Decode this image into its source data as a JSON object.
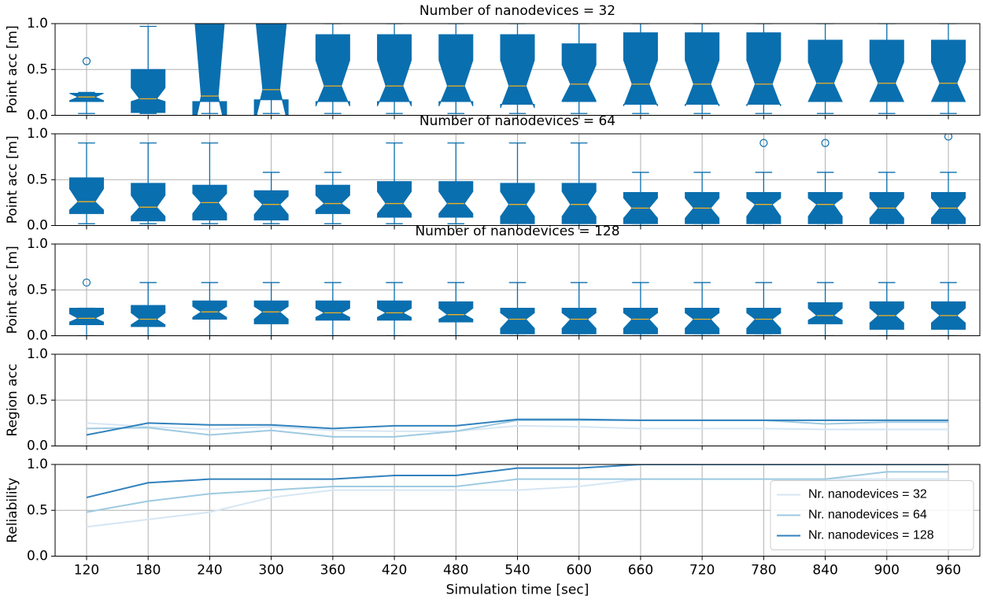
{
  "chart_data": [
    {
      "type": "box",
      "title": "Number of nanodevices = 32",
      "ylabel": "Point acc [m]",
      "color": "#0a6faf",
      "median_color": "#f0b020",
      "ylim": [
        0,
        1
      ],
      "yticks": [
        {
          "value": 0,
          "label": "0.0"
        },
        {
          "value": 0.5,
          "label": "0.5"
        },
        {
          "value": 1,
          "label": "1.0"
        }
      ],
      "grid": true,
      "boxes": [
        {
          "whislo": 0.02,
          "q1": 0.15,
          "cilo": 0.16,
          "med": 0.2,
          "cihi": 0.24,
          "q3": 0.24,
          "whishi": 0.25,
          "fliers": [
            0.59
          ]
        },
        {
          "whislo": 0.02,
          "q1": 0.03,
          "cilo": 0.15,
          "med": 0.18,
          "cihi": 0.3,
          "q3": 0.5,
          "whishi": 0.97
        },
        {
          "whislo": 0.02,
          "q1": 0.15,
          "cilo": -0.2,
          "med": 0.21,
          "cihi": 1.3,
          "q3": 1.0,
          "whishi": 1.0
        },
        {
          "whislo": 0.02,
          "q1": 0.17,
          "cilo": -0.1,
          "med": 0.28,
          "cihi": 1.2,
          "q3": 1.0,
          "whishi": 1.0
        },
        {
          "whislo": 0.02,
          "q1": 0.15,
          "cilo": 0.1,
          "med": 0.32,
          "cihi": 0.6,
          "q3": 0.88,
          "whishi": 1.0
        },
        {
          "whislo": 0.02,
          "q1": 0.15,
          "cilo": 0.1,
          "med": 0.32,
          "cihi": 0.6,
          "q3": 0.88,
          "whishi": 1.0
        },
        {
          "whislo": 0.02,
          "q1": 0.15,
          "cilo": 0.1,
          "med": 0.32,
          "cihi": 0.6,
          "q3": 0.88,
          "whishi": 1.0
        },
        {
          "whislo": 0.02,
          "q1": 0.12,
          "cilo": 0.08,
          "med": 0.32,
          "cihi": 0.6,
          "q3": 0.88,
          "whishi": 1.0
        },
        {
          "whislo": 0.02,
          "q1": 0.15,
          "cilo": 0.16,
          "med": 0.34,
          "cihi": 0.55,
          "q3": 0.78,
          "whishi": 1.0
        },
        {
          "whislo": 0.02,
          "q1": 0.12,
          "cilo": 0.1,
          "med": 0.34,
          "cihi": 0.6,
          "q3": 0.9,
          "whishi": 1.0
        },
        {
          "whislo": 0.02,
          "q1": 0.12,
          "cilo": 0.1,
          "med": 0.34,
          "cihi": 0.6,
          "q3": 0.9,
          "whishi": 1.0
        },
        {
          "whislo": 0.02,
          "q1": 0.12,
          "cilo": 0.1,
          "med": 0.34,
          "cihi": 0.6,
          "q3": 0.9,
          "whishi": 1.0
        },
        {
          "whislo": 0.02,
          "q1": 0.15,
          "cilo": 0.15,
          "med": 0.35,
          "cihi": 0.58,
          "q3": 0.82,
          "whishi": 1.0
        },
        {
          "whislo": 0.02,
          "q1": 0.15,
          "cilo": 0.15,
          "med": 0.35,
          "cihi": 0.58,
          "q3": 0.82,
          "whishi": 1.0
        },
        {
          "whislo": 0.02,
          "q1": 0.15,
          "cilo": 0.15,
          "med": 0.35,
          "cihi": 0.58,
          "q3": 0.82,
          "whishi": 1.0
        }
      ]
    },
    {
      "type": "box",
      "title": "Number of nanodevices = 64",
      "ylabel": "Point acc [m]",
      "color": "#0a6faf",
      "median_color": "#f0b020",
      "ylim": [
        0,
        1
      ],
      "yticks": [
        {
          "value": 0,
          "label": "0.0"
        },
        {
          "value": 0.5,
          "label": "0.5"
        },
        {
          "value": 1,
          "label": "1.0"
        }
      ],
      "grid": true,
      "boxes": [
        {
          "whislo": 0.02,
          "q1": 0.13,
          "cilo": 0.17,
          "med": 0.26,
          "cihi": 0.4,
          "q3": 0.52,
          "whishi": 0.9
        },
        {
          "whislo": 0.02,
          "q1": 0.05,
          "cilo": 0.1,
          "med": 0.2,
          "cihi": 0.33,
          "q3": 0.46,
          "whishi": 0.9
        },
        {
          "whislo": 0.02,
          "q1": 0.06,
          "cilo": 0.13,
          "med": 0.25,
          "cihi": 0.35,
          "q3": 0.44,
          "whishi": 0.9
        },
        {
          "whislo": 0.02,
          "q1": 0.06,
          "cilo": 0.12,
          "med": 0.23,
          "cihi": 0.32,
          "q3": 0.38,
          "whishi": 0.58
        },
        {
          "whislo": 0.02,
          "q1": 0.13,
          "cilo": 0.17,
          "med": 0.24,
          "cihi": 0.33,
          "q3": 0.44,
          "whishi": 0.58
        },
        {
          "whislo": 0.02,
          "q1": 0.09,
          "cilo": 0.13,
          "med": 0.24,
          "cihi": 0.37,
          "q3": 0.48,
          "whishi": 0.9
        },
        {
          "whislo": 0.02,
          "q1": 0.09,
          "cilo": 0.13,
          "med": 0.24,
          "cihi": 0.37,
          "q3": 0.48,
          "whishi": 0.9
        },
        {
          "whislo": 0.0,
          "q1": 0.02,
          "cilo": 0.1,
          "med": 0.23,
          "cihi": 0.37,
          "q3": 0.46,
          "whishi": 0.9
        },
        {
          "whislo": 0.0,
          "q1": 0.02,
          "cilo": 0.1,
          "med": 0.23,
          "cihi": 0.37,
          "q3": 0.46,
          "whishi": 0.9
        },
        {
          "whislo": 0.0,
          "q1": 0.02,
          "cilo": 0.08,
          "med": 0.19,
          "cihi": 0.3,
          "q3": 0.36,
          "whishi": 0.58
        },
        {
          "whislo": 0.0,
          "q1": 0.02,
          "cilo": 0.08,
          "med": 0.19,
          "cihi": 0.3,
          "q3": 0.36,
          "whishi": 0.58
        },
        {
          "whislo": 0.0,
          "q1": 0.02,
          "cilo": 0.1,
          "med": 0.23,
          "cihi": 0.3,
          "q3": 0.36,
          "whishi": 0.58,
          "fliers": [
            0.9
          ]
        },
        {
          "whislo": 0.0,
          "q1": 0.02,
          "cilo": 0.1,
          "med": 0.23,
          "cihi": 0.3,
          "q3": 0.36,
          "whishi": 0.58,
          "fliers": [
            0.9
          ]
        },
        {
          "whislo": 0.0,
          "q1": 0.02,
          "cilo": 0.08,
          "med": 0.19,
          "cihi": 0.3,
          "q3": 0.36,
          "whishi": 0.58
        },
        {
          "whislo": 0.0,
          "q1": 0.02,
          "cilo": 0.08,
          "med": 0.19,
          "cihi": 0.3,
          "q3": 0.36,
          "whishi": 0.58,
          "fliers": [
            0.97
          ]
        }
      ]
    },
    {
      "type": "box",
      "title": "Number of nanodevices = 128",
      "ylabel": "Point acc [m]",
      "color": "#0a6faf",
      "median_color": "#f0b020",
      "ylim": [
        0,
        1
      ],
      "yticks": [
        {
          "value": 0,
          "label": "0.0"
        },
        {
          "value": 0.5,
          "label": "0.5"
        },
        {
          "value": 1,
          "label": "1.0"
        }
      ],
      "grid": true,
      "boxes": [
        {
          "whislo": 0.0,
          "q1": 0.12,
          "cilo": 0.15,
          "med": 0.19,
          "cihi": 0.24,
          "q3": 0.3,
          "whishi": 0.3,
          "fliers": [
            0.58
          ]
        },
        {
          "whislo": 0.0,
          "q1": 0.1,
          "cilo": 0.12,
          "med": 0.18,
          "cihi": 0.25,
          "q3": 0.33,
          "whishi": 0.58
        },
        {
          "whislo": 0.0,
          "q1": 0.18,
          "cilo": 0.2,
          "med": 0.26,
          "cihi": 0.32,
          "q3": 0.38,
          "whishi": 0.58
        },
        {
          "whislo": 0.0,
          "q1": 0.13,
          "cilo": 0.18,
          "med": 0.26,
          "cihi": 0.32,
          "q3": 0.38,
          "whishi": 0.58
        },
        {
          "whislo": 0.0,
          "q1": 0.17,
          "cilo": 0.2,
          "med": 0.25,
          "cihi": 0.3,
          "q3": 0.38,
          "whishi": 0.58
        },
        {
          "whislo": 0.0,
          "q1": 0.17,
          "cilo": 0.2,
          "med": 0.25,
          "cihi": 0.3,
          "q3": 0.38,
          "whishi": 0.58
        },
        {
          "whislo": 0.0,
          "q1": 0.15,
          "cilo": 0.18,
          "med": 0.23,
          "cihi": 0.3,
          "q3": 0.37,
          "whishi": 0.58
        },
        {
          "whislo": 0.0,
          "q1": 0.02,
          "cilo": 0.08,
          "med": 0.18,
          "cihi": 0.25,
          "q3": 0.3,
          "whishi": 0.58
        },
        {
          "whislo": 0.0,
          "q1": 0.02,
          "cilo": 0.08,
          "med": 0.18,
          "cihi": 0.25,
          "q3": 0.3,
          "whishi": 0.58
        },
        {
          "whislo": 0.0,
          "q1": 0.02,
          "cilo": 0.08,
          "med": 0.18,
          "cihi": 0.25,
          "q3": 0.3,
          "whishi": 0.58
        },
        {
          "whislo": 0.0,
          "q1": 0.02,
          "cilo": 0.08,
          "med": 0.18,
          "cihi": 0.25,
          "q3": 0.3,
          "whishi": 0.58
        },
        {
          "whislo": 0.0,
          "q1": 0.02,
          "cilo": 0.08,
          "med": 0.18,
          "cihi": 0.25,
          "q3": 0.3,
          "whishi": 0.58
        },
        {
          "whislo": 0.0,
          "q1": 0.13,
          "cilo": 0.17,
          "med": 0.22,
          "cihi": 0.3,
          "q3": 0.36,
          "whishi": 0.58
        },
        {
          "whislo": 0.0,
          "q1": 0.07,
          "cilo": 0.14,
          "med": 0.22,
          "cihi": 0.3,
          "q3": 0.37,
          "whishi": 0.58
        },
        {
          "whislo": 0.0,
          "q1": 0.07,
          "cilo": 0.14,
          "med": 0.22,
          "cihi": 0.3,
          "q3": 0.37,
          "whishi": 0.58
        }
      ]
    },
    {
      "type": "line",
      "ylabel": "Region acc",
      "ylim": [
        0,
        1
      ],
      "yticks": [
        {
          "value": 0,
          "label": "0.0"
        },
        {
          "value": 0.5,
          "label": "0.5"
        },
        {
          "value": 1,
          "label": "1.0"
        }
      ],
      "grid": true,
      "series": [
        {
          "color": "#d6e6f4",
          "values": [
            0.25,
            0.21,
            0.18,
            0.21,
            0.17,
            0.16,
            0.16,
            0.22,
            0.21,
            0.19,
            0.19,
            0.19,
            0.18,
            0.18,
            0.18
          ]
        },
        {
          "color": "#9ecae1",
          "values": [
            0.19,
            0.2,
            0.12,
            0.17,
            0.1,
            0.1,
            0.16,
            0.28,
            0.28,
            0.28,
            0.28,
            0.28,
            0.24,
            0.26,
            0.26
          ]
        },
        {
          "color": "#3182bd",
          "values": [
            0.12,
            0.25,
            0.23,
            0.23,
            0.19,
            0.22,
            0.22,
            0.29,
            0.29,
            0.28,
            0.28,
            0.28,
            0.28,
            0.28,
            0.28
          ]
        }
      ]
    },
    {
      "type": "line",
      "ylabel": "Reliability",
      "xlabel": "Simulation time [sec]",
      "categories": [
        120,
        180,
        240,
        300,
        360,
        420,
        480,
        540,
        600,
        660,
        720,
        780,
        840,
        900,
        960
      ],
      "ylim": [
        0,
        1
      ],
      "yticks": [
        {
          "value": 0,
          "label": "0.0"
        },
        {
          "value": 0.5,
          "label": "0.5"
        },
        {
          "value": 1,
          "label": "1.0"
        }
      ],
      "grid": true,
      "legend": "lower right",
      "series": [
        {
          "name": "Nr. nanodevices = 32",
          "color": "#d6e6f4",
          "values": [
            0.32,
            0.4,
            0.48,
            0.64,
            0.72,
            0.72,
            0.72,
            0.72,
            0.76,
            0.84,
            0.84,
            0.84,
            0.84,
            0.84,
            0.84
          ]
        },
        {
          "name": "Nr. nanodevices = 64",
          "color": "#9ecae1",
          "values": [
            0.48,
            0.6,
            0.68,
            0.72,
            0.76,
            0.76,
            0.76,
            0.84,
            0.84,
            0.84,
            0.84,
            0.84,
            0.84,
            0.92,
            0.92
          ]
        },
        {
          "name": "Nr. nanodevices = 128",
          "color": "#3182bd",
          "values": [
            0.64,
            0.8,
            0.84,
            0.84,
            0.84,
            0.88,
            0.88,
            0.96,
            0.96,
            1.0,
            1.0,
            1.0,
            1.0,
            1.0,
            1.0
          ]
        }
      ]
    }
  ]
}
